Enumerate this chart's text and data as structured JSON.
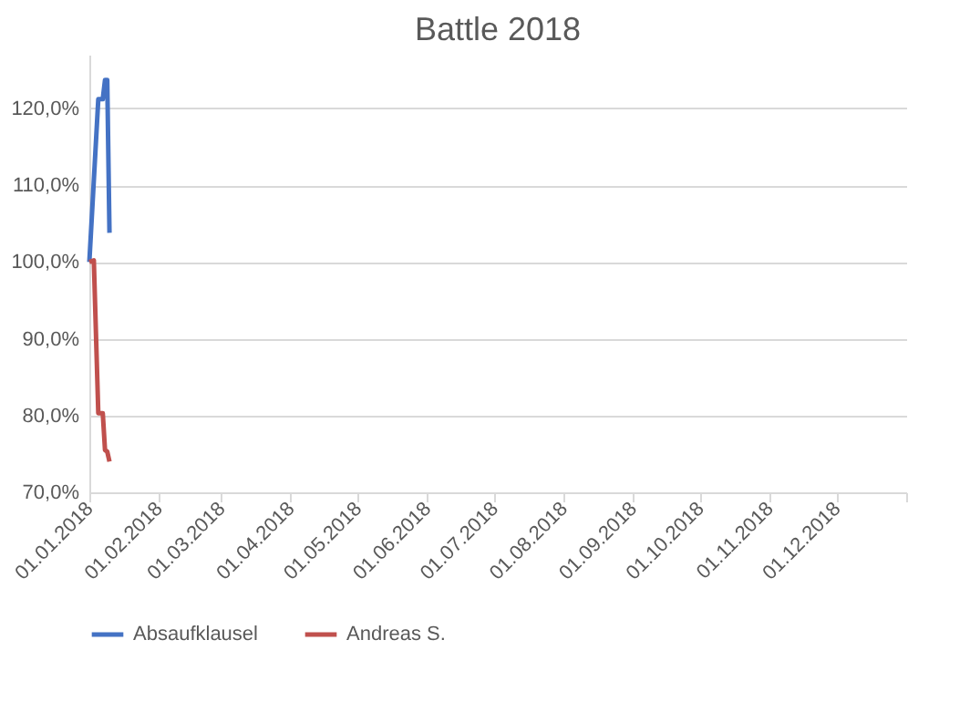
{
  "chart_data": {
    "type": "line",
    "title": "Battle 2018",
    "series": [
      {
        "name": "Absaufklausel",
        "color": "#4472c4",
        "x": [
          "2018-01-01",
          "2018-01-05",
          "2018-01-07",
          "2018-01-08",
          "2018-01-09",
          "2018-01-10"
        ],
        "values": [
          100.0,
          121.2,
          121.2,
          123.7,
          123.7,
          103.8
        ]
      },
      {
        "name": "Andreas S.",
        "color": "#c0504d",
        "x": [
          "2018-01-01",
          "2018-01-03",
          "2018-01-05",
          "2018-01-07",
          "2018-01-08",
          "2018-01-09",
          "2018-01-10"
        ],
        "values": [
          100.0,
          100.2,
          80.3,
          80.3,
          75.5,
          75.3,
          74.0
        ]
      }
    ],
    "xlim": [
      "2018-01-01",
      "2019-01-01"
    ],
    "xticks": [
      {
        "value": "2018-01-01",
        "label": "01.01.2018"
      },
      {
        "value": "2018-02-01",
        "label": "01.02.2018"
      },
      {
        "value": "2018-03-01",
        "label": "01.03.2018"
      },
      {
        "value": "2018-04-01",
        "label": "01.04.2018"
      },
      {
        "value": "2018-05-01",
        "label": "01.05.2018"
      },
      {
        "value": "2018-06-01",
        "label": "01.06.2018"
      },
      {
        "value": "2018-07-01",
        "label": "01.07.2018"
      },
      {
        "value": "2018-08-01",
        "label": "01.08.2018"
      },
      {
        "value": "2018-09-01",
        "label": "01.09.2018"
      },
      {
        "value": "2018-10-01",
        "label": "01.10.2018"
      },
      {
        "value": "2018-11-01",
        "label": "01.11.2018"
      },
      {
        "value": "2018-12-01",
        "label": "01.12.2018"
      },
      {
        "value": "2019-01-01",
        "label": null
      }
    ],
    "ylim": [
      70,
      127
    ],
    "yticks": [
      {
        "value": 70,
        "label": "70,0%"
      },
      {
        "value": 80,
        "label": "80,0%"
      },
      {
        "value": 90,
        "label": "90,0%"
      },
      {
        "value": 100,
        "label": "100,0%"
      },
      {
        "value": 110,
        "label": "110,0%"
      },
      {
        "value": 120,
        "label": "120,0%"
      }
    ],
    "grid": "y",
    "legend": "bottom",
    "marker": "none",
    "line_style": "solid"
  }
}
